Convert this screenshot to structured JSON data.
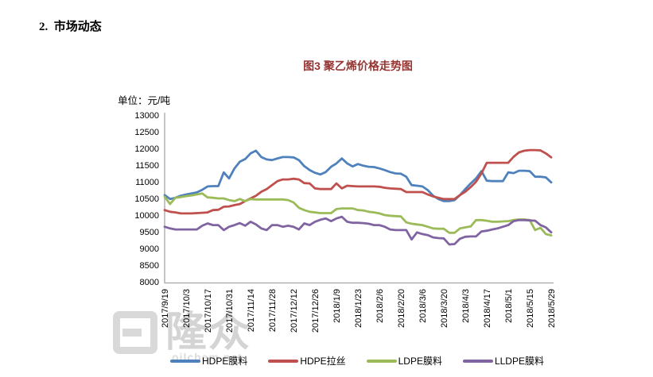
{
  "page": {
    "section_heading": "2.  市场动态",
    "watermark": {
      "logo_text": "隆众",
      "site": "oilchem.net"
    }
  },
  "chart_data": {
    "type": "line",
    "title": "图3 聚乙烯价格走势图",
    "title_color": "#963634",
    "ylabel": "单位：元/吨",
    "xlabel": "",
    "ylim": [
      8000,
      13000
    ],
    "ytick_step": 500,
    "yticks": [
      8000,
      8500,
      9000,
      9500,
      10000,
      10500,
      11000,
      11500,
      12000,
      12500,
      13000
    ],
    "xtick_labels": [
      "2017/9/19",
      "2017/10/3",
      "2017/10/17",
      "2017/10/31",
      "2017/11/14",
      "2017/11/28",
      "2017/12/12",
      "2017/12/26",
      "2018/1/9",
      "2018/1/23",
      "2018/2/6",
      "2018/2/20",
      "2018/3/6",
      "2018/3/20",
      "2018/4/3",
      "2018/4/17",
      "2018/5/1",
      "2018/5/15",
      "2018/5/29"
    ],
    "x_sample_interval_days": 3.5,
    "grid": false,
    "axis_color": "#a6a6a6",
    "legend_position": "bottom",
    "series": [
      {
        "key": "hdpe-film",
        "name": "HDPE膜料",
        "color": "#4F81BD",
        "values": [
          10600,
          10480,
          10520,
          10580,
          10620,
          10650,
          10680,
          10760,
          10860,
          10870,
          10870,
          11280,
          11100,
          11400,
          11600,
          11680,
          11850,
          11930,
          11740,
          11670,
          11650,
          11700,
          11740,
          11740,
          11730,
          11650,
          11470,
          11350,
          11270,
          11220,
          11290,
          11450,
          11550,
          11700,
          11550,
          11460,
          11530,
          11480,
          11450,
          11440,
          11400,
          11350,
          11290,
          11250,
          11240,
          11150,
          10900,
          10880,
          10860,
          10750,
          10580,
          10480,
          10420,
          10420,
          10450,
          10600,
          10780,
          10950,
          11100,
          11320,
          11030,
          11020,
          11020,
          11020,
          11280,
          11260,
          11330,
          11330,
          11320,
          11150,
          11150,
          11130,
          10980
        ]
      },
      {
        "key": "hdpe-wiredrawing",
        "name": "HDPE拉丝",
        "color": "#C0504D",
        "values": [
          10150,
          10100,
          10080,
          10050,
          10050,
          10050,
          10060,
          10070,
          10080,
          10150,
          10160,
          10250,
          10260,
          10300,
          10330,
          10420,
          10500,
          10580,
          10700,
          10780,
          10900,
          11020,
          11070,
          11070,
          11090,
          11070,
          10960,
          10950,
          10800,
          10780,
          10780,
          10780,
          10950,
          10800,
          10880,
          10870,
          10860,
          10860,
          10860,
          10860,
          10850,
          10820,
          10800,
          10790,
          10780,
          10690,
          10690,
          10690,
          10690,
          10620,
          10560,
          10520,
          10480,
          10480,
          10480,
          10600,
          10700,
          10840,
          11000,
          11250,
          11570,
          11570,
          11570,
          11570,
          11570,
          11750,
          11880,
          11930,
          11950,
          11950,
          11940,
          11850,
          11730
        ]
      },
      {
        "key": "ldpe-film",
        "name": "LDPE膜料",
        "color": "#9BBB59",
        "values": [
          10550,
          10330,
          10520,
          10540,
          10570,
          10590,
          10620,
          10650,
          10530,
          10520,
          10500,
          10500,
          10450,
          10420,
          10480,
          10420,
          10480,
          10470,
          10470,
          10470,
          10470,
          10470,
          10470,
          10450,
          10380,
          10220,
          10150,
          10100,
          10080,
          10060,
          10060,
          10060,
          10180,
          10200,
          10200,
          10200,
          10150,
          10140,
          10100,
          10080,
          10050,
          10000,
          9980,
          9970,
          9960,
          9780,
          9740,
          9720,
          9700,
          9650,
          9600,
          9590,
          9590,
          9470,
          9470,
          9600,
          9630,
          9660,
          9850,
          9850,
          9830,
          9800,
          9800,
          9810,
          9820,
          9850,
          9870,
          9870,
          9850,
          9550,
          9620,
          9430,
          9390
        ]
      },
      {
        "key": "lldpe-film",
        "name": "LLDPE膜料",
        "color": "#8064A2",
        "values": [
          9650,
          9600,
          9570,
          9570,
          9570,
          9570,
          9570,
          9680,
          9750,
          9700,
          9700,
          9550,
          9650,
          9700,
          9760,
          9680,
          9800,
          9720,
          9600,
          9550,
          9700,
          9700,
          9650,
          9680,
          9650,
          9570,
          9750,
          9700,
          9800,
          9860,
          9900,
          9820,
          9900,
          9950,
          9800,
          9770,
          9770,
          9760,
          9740,
          9700,
          9700,
          9650,
          9570,
          9550,
          9550,
          9550,
          9270,
          9480,
          9430,
          9400,
          9330,
          9310,
          9300,
          9120,
          9130,
          9290,
          9350,
          9360,
          9360,
          9510,
          9530,
          9570,
          9600,
          9650,
          9700,
          9820,
          9850,
          9850,
          9840,
          9830,
          9700,
          9630,
          9480
        ]
      }
    ]
  }
}
